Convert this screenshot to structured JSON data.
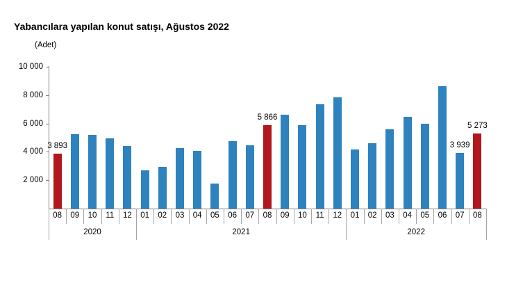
{
  "chart_data": {
    "type": "bar",
    "title": "Yabancılara yapılan konut satışı, Ağustos 2022",
    "ylabel": "(Adet)",
    "xlabel": "",
    "ylim": [
      0,
      10000
    ],
    "yticks": [
      2000,
      4000,
      6000,
      8000,
      10000
    ],
    "ytick_labels": [
      "2 000",
      "4 000",
      "6 000",
      "8 000",
      "10 000"
    ],
    "grid": false,
    "legend": false,
    "groups": [
      {
        "year": "2020",
        "months": [
          "08",
          "09",
          "10",
          "11",
          "12"
        ],
        "values": [
          3893,
          5269,
          5189,
          4962,
          4427
        ]
      },
      {
        "year": "2021",
        "months": [
          "01",
          "02",
          "03",
          "04",
          "05",
          "06",
          "07",
          "08",
          "09",
          "10",
          "11",
          "12"
        ],
        "values": [
          2675,
          2964,
          4248,
          4077,
          1776,
          4748,
          4448,
          5866,
          6630,
          5893,
          7363,
          7841
        ]
      },
      {
        "year": "2022",
        "months": [
          "01",
          "02",
          "03",
          "04",
          "05",
          "06",
          "07",
          "08"
        ],
        "values": [
          4186,
          4591,
          5567,
          6447,
          5962,
          8630,
          3939,
          5273
        ]
      }
    ],
    "highlighted_bars": [
      "2020-08",
      "2021-08",
      "2022-08"
    ],
    "data_labels": [
      {
        "bar": "2020-08",
        "label": "3 893"
      },
      {
        "bar": "2021-08",
        "label": "5 866"
      },
      {
        "bar": "2022-07",
        "label": "3 939"
      },
      {
        "bar": "2022-08",
        "label": "5 273"
      }
    ],
    "colors": {
      "bar": "#2E82BE",
      "highlight": "#B2171D",
      "axis": "#808080",
      "separator": "#A6A6A6",
      "text": "#000000"
    }
  }
}
